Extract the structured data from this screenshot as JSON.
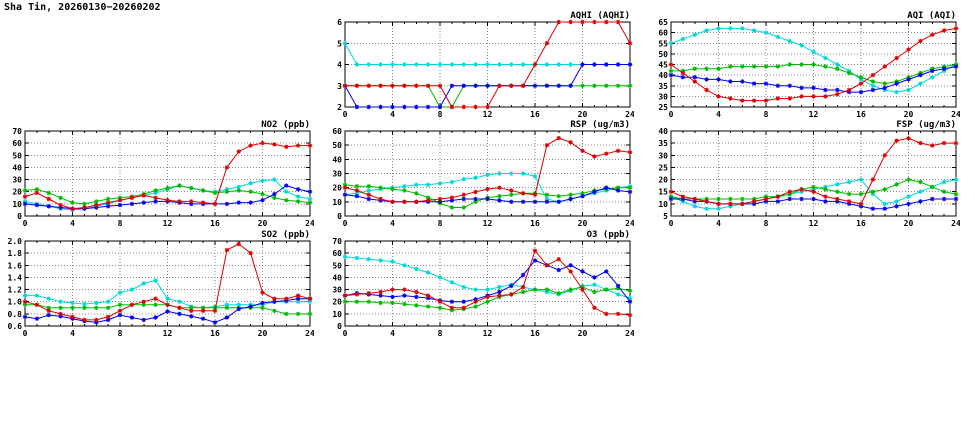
{
  "page_title": "Sha Tin, 20260130−20260202",
  "colors": {
    "red": "#dd0000",
    "green": "#00bb00",
    "blue": "#0000ee",
    "cyan": "#00d8d8",
    "grid": "#8a8a8a",
    "axis": "#000000",
    "background": "#ffffff"
  },
  "chart_data": [
    {
      "type": "line",
      "title": "AQHI (AQHI)",
      "x_range": [
        0,
        24
      ],
      "x_ticks": [
        0,
        4,
        8,
        12,
        16,
        20,
        24
      ],
      "y_range": [
        2,
        6
      ],
      "y_ticks": [
        2,
        3,
        4,
        5,
        6
      ],
      "y_decimals": 0,
      "grid": true,
      "legend": "none",
      "marker": "asterisk",
      "series": [
        {
          "name": "cyan",
          "color": "#00d8d8",
          "values": [
            5,
            4,
            4,
            4,
            4,
            4,
            4,
            4,
            4,
            4,
            4,
            4,
            4,
            4,
            4,
            4,
            4,
            4,
            4,
            4,
            4,
            4,
            4,
            4,
            4
          ]
        },
        {
          "name": "green",
          "color": "#00bb00",
          "values": [
            3,
            3,
            3,
            3,
            3,
            3,
            3,
            3,
            2,
            2,
            3,
            3,
            3,
            3,
            3,
            3,
            3,
            3,
            3,
            3,
            3,
            3,
            3,
            3,
            3
          ]
        },
        {
          "name": "blue",
          "color": "#0000ee",
          "values": [
            3,
            2,
            2,
            2,
            2,
            2,
            2,
            2,
            2,
            3,
            3,
            3,
            3,
            3,
            3,
            3,
            3,
            3,
            3,
            3,
            4,
            4,
            4,
            4,
            4
          ]
        },
        {
          "name": "red",
          "color": "#dd0000",
          "values": [
            3,
            3,
            3,
            3,
            3,
            3,
            3,
            3,
            3,
            2,
            2,
            2,
            2,
            3,
            3,
            3,
            4,
            5,
            6,
            6,
            6,
            6,
            6,
            6,
            5
          ]
        }
      ]
    },
    {
      "type": "line",
      "title": "AQI (AQI)",
      "x_range": [
        0,
        24
      ],
      "x_ticks": [
        0,
        4,
        8,
        12,
        16,
        20,
        24
      ],
      "y_range": [
        25,
        65
      ],
      "y_ticks": [
        25,
        30,
        35,
        40,
        45,
        50,
        55,
        60,
        65
      ],
      "y_decimals": 0,
      "grid": true,
      "legend": "none",
      "marker": "asterisk",
      "series": [
        {
          "name": "cyan",
          "color": "#00d8d8",
          "values": [
            55,
            57,
            59,
            61,
            62,
            62,
            62,
            61,
            60,
            58,
            56,
            54,
            51,
            48,
            45,
            42,
            38,
            35,
            33,
            32,
            33,
            36,
            39,
            42,
            45
          ]
        },
        {
          "name": "green",
          "color": "#00bb00",
          "values": [
            42,
            42,
            43,
            43,
            43,
            44,
            44,
            44,
            44,
            44,
            45,
            45,
            45,
            44,
            43,
            41,
            39,
            37,
            36,
            37,
            39,
            41,
            43,
            44,
            45
          ]
        },
        {
          "name": "blue",
          "color": "#0000ee",
          "values": [
            40,
            39,
            39,
            38,
            38,
            37,
            37,
            36,
            36,
            35,
            35,
            34,
            34,
            33,
            33,
            32,
            32,
            33,
            34,
            36,
            38,
            40,
            42,
            43,
            44
          ]
        },
        {
          "name": "red",
          "color": "#dd0000",
          "values": [
            45,
            41,
            37,
            33,
            30,
            29,
            28,
            28,
            28,
            29,
            29,
            30,
            30,
            30,
            31,
            33,
            36,
            40,
            44,
            48,
            52,
            56,
            59,
            61,
            62
          ]
        }
      ]
    },
    {
      "type": "line",
      "title": "NO2 (ppb)",
      "x_range": [
        0,
        24
      ],
      "x_ticks": [
        0,
        4,
        8,
        12,
        16,
        20,
        24
      ],
      "y_range": [
        0,
        70
      ],
      "y_ticks": [
        0,
        10,
        20,
        30,
        40,
        50,
        60,
        70
      ],
      "y_decimals": 0,
      "grid": true,
      "legend": "none",
      "marker": "asterisk",
      "series": [
        {
          "name": "cyan",
          "color": "#00d8d8",
          "values": [
            12,
            10,
            8,
            6,
            5,
            6,
            8,
            10,
            13,
            15,
            17,
            19,
            22,
            25,
            23,
            21,
            20,
            22,
            24,
            27,
            29,
            30,
            20,
            16,
            14
          ]
        },
        {
          "name": "green",
          "color": "#00bb00",
          "values": [
            21,
            22,
            19,
            15,
            11,
            10,
            12,
            14,
            15,
            16,
            18,
            21,
            23,
            25,
            23,
            21,
            19,
            20,
            21,
            20,
            18,
            15,
            13,
            12,
            11
          ]
        },
        {
          "name": "blue",
          "color": "#0000ee",
          "values": [
            10,
            9,
            8,
            7,
            6,
            6,
            7,
            8,
            9,
            10,
            11,
            12,
            12,
            11,
            10,
            10,
            10,
            10,
            11,
            11,
            13,
            18,
            25,
            22,
            20
          ]
        },
        {
          "name": "red",
          "color": "#dd0000",
          "values": [
            16,
            19,
            14,
            9,
            6,
            7,
            9,
            11,
            13,
            15,
            17,
            15,
            13,
            12,
            12,
            11,
            10,
            40,
            53,
            58,
            60,
            59,
            57,
            58,
            58
          ]
        }
      ]
    },
    {
      "type": "line",
      "title": "RSP (ug/m3)",
      "x_range": [
        0,
        24
      ],
      "x_ticks": [
        0,
        4,
        8,
        12,
        16,
        20,
        24
      ],
      "y_range": [
        0,
        60
      ],
      "y_ticks": [
        0,
        10,
        20,
        30,
        40,
        50,
        60
      ],
      "y_decimals": 0,
      "grid": true,
      "legend": "none",
      "marker": "asterisk",
      "series": [
        {
          "name": "cyan",
          "color": "#00d8d8",
          "values": [
            15,
            16,
            18,
            19,
            20,
            21,
            22,
            22,
            23,
            24,
            26,
            27,
            29,
            30,
            30,
            30,
            28,
            12,
            10,
            12,
            14,
            16,
            18,
            20,
            21
          ]
        },
        {
          "name": "green",
          "color": "#00bb00",
          "values": [
            22,
            21,
            21,
            20,
            19,
            18,
            16,
            13,
            9,
            6,
            6,
            10,
            13,
            14,
            15,
            16,
            16,
            15,
            14,
            15,
            16,
            18,
            19,
            20,
            20
          ]
        },
        {
          "name": "blue",
          "color": "#0000ee",
          "values": [
            15,
            14,
            12,
            11,
            10,
            10,
            10,
            10,
            10,
            11,
            12,
            12,
            12,
            11,
            10,
            10,
            10,
            10,
            10,
            12,
            14,
            17,
            20,
            18,
            17
          ]
        },
        {
          "name": "red",
          "color": "#dd0000",
          "values": [
            20,
            18,
            15,
            12,
            10,
            10,
            10,
            11,
            12,
            13,
            15,
            17,
            19,
            20,
            18,
            16,
            15,
            50,
            55,
            52,
            46,
            42,
            44,
            46,
            45
          ]
        }
      ]
    },
    {
      "type": "line",
      "title": "FSP (ug/m3)",
      "x_range": [
        0,
        24
      ],
      "x_ticks": [
        0,
        4,
        8,
        12,
        16,
        20,
        24
      ],
      "y_range": [
        5,
        40
      ],
      "y_ticks": [
        5,
        10,
        15,
        20,
        25,
        30,
        35,
        40
      ],
      "y_decimals": 0,
      "grid": true,
      "legend": "none",
      "marker": "asterisk",
      "series": [
        {
          "name": "cyan",
          "color": "#00d8d8",
          "values": [
            13,
            11,
            9,
            8,
            8,
            9,
            10,
            11,
            12,
            13,
            14,
            15,
            16,
            17,
            18,
            19,
            20,
            14,
            10,
            11,
            13,
            15,
            17,
            19,
            20
          ]
        },
        {
          "name": "green",
          "color": "#00bb00",
          "values": [
            13,
            12,
            12,
            12,
            12,
            12,
            12,
            12,
            13,
            13,
            14,
            16,
            17,
            16,
            15,
            14,
            14,
            15,
            16,
            18,
            20,
            19,
            17,
            15,
            14
          ]
        },
        {
          "name": "blue",
          "color": "#0000ee",
          "values": [
            12,
            12,
            11,
            11,
            10,
            10,
            10,
            10,
            11,
            11,
            12,
            12,
            12,
            11,
            11,
            10,
            9,
            8,
            8,
            9,
            10,
            11,
            12,
            12,
            12
          ]
        },
        {
          "name": "red",
          "color": "#dd0000",
          "values": [
            15,
            13,
            12,
            11,
            10,
            10,
            10,
            11,
            12,
            13,
            15,
            16,
            15,
            13,
            12,
            11,
            10,
            20,
            30,
            36,
            37,
            35,
            34,
            35,
            35
          ]
        }
      ]
    },
    {
      "type": "line",
      "title": "SO2 (ppb)",
      "x_range": [
        0,
        24
      ],
      "x_ticks": [
        0,
        4,
        8,
        12,
        16,
        20,
        24
      ],
      "y_range": [
        0.6,
        2.0
      ],
      "y_ticks": [
        0.6,
        0.8,
        1.0,
        1.2,
        1.4,
        1.6,
        1.8,
        2.0
      ],
      "y_decimals": 1,
      "grid": true,
      "legend": "none",
      "marker": "asterisk",
      "series": [
        {
          "name": "cyan",
          "color": "#00d8d8",
          "values": [
            1.1,
            1.1,
            1.05,
            1.0,
            0.98,
            0.96,
            0.98,
            1.0,
            1.15,
            1.2,
            1.3,
            1.35,
            1.05,
            1.0,
            0.92,
            0.9,
            0.92,
            0.95,
            0.95,
            0.95,
            0.95,
            1.0,
            1.0,
            1.0,
            1.0
          ]
        },
        {
          "name": "green",
          "color": "#00bb00",
          "values": [
            0.95,
            0.95,
            0.9,
            0.9,
            0.9,
            0.9,
            0.9,
            0.9,
            0.95,
            0.95,
            0.95,
            0.95,
            0.95,
            0.9,
            0.9,
            0.9,
            0.9,
            0.9,
            0.9,
            0.9,
            0.9,
            0.85,
            0.8,
            0.8,
            0.8
          ]
        },
        {
          "name": "blue",
          "color": "#0000ee",
          "values": [
            0.75,
            0.72,
            0.78,
            0.76,
            0.72,
            0.68,
            0.66,
            0.7,
            0.78,
            0.74,
            0.7,
            0.74,
            0.84,
            0.8,
            0.76,
            0.72,
            0.66,
            0.74,
            0.88,
            0.92,
            0.98,
            1.0,
            1.02,
            1.05,
            1.05
          ]
        },
        {
          "name": "red",
          "color": "#dd0000",
          "values": [
            1.0,
            0.95,
            0.85,
            0.8,
            0.75,
            0.7,
            0.7,
            0.75,
            0.85,
            0.95,
            1.0,
            1.05,
            0.95,
            0.9,
            0.85,
            0.85,
            0.85,
            1.85,
            1.95,
            1.8,
            1.15,
            1.05,
            1.05,
            1.1,
            1.05
          ]
        }
      ]
    },
    {
      "type": "line",
      "title": "O3 (ppb)",
      "x_range": [
        0,
        24
      ],
      "x_ticks": [
        0,
        4,
        8,
        12,
        16,
        20,
        24
      ],
      "y_range": [
        0,
        70
      ],
      "y_ticks": [
        0,
        10,
        20,
        30,
        40,
        50,
        60,
        70
      ],
      "y_decimals": 0,
      "grid": true,
      "legend": "none",
      "marker": "asterisk",
      "series": [
        {
          "name": "cyan",
          "color": "#00d8d8",
          "values": [
            57,
            56,
            55,
            54,
            53,
            50,
            47,
            44,
            40,
            36,
            32,
            30,
            30,
            32,
            34,
            32,
            30,
            28,
            26,
            29,
            33,
            34,
            30,
            26,
            23
          ]
        },
        {
          "name": "green",
          "color": "#00bb00",
          "values": [
            20,
            20,
            20,
            19,
            19,
            18,
            17,
            16,
            15,
            13,
            14,
            16,
            20,
            24,
            26,
            28,
            30,
            30,
            27,
            30,
            32,
            28,
            30,
            31,
            29
          ]
        },
        {
          "name": "blue",
          "color": "#0000ee",
          "values": [
            25,
            27,
            26,
            25,
            24,
            25,
            24,
            23,
            21,
            20,
            20,
            22,
            25,
            28,
            33,
            42,
            54,
            50,
            46,
            50,
            45,
            40,
            45,
            33,
            20
          ]
        },
        {
          "name": "red",
          "color": "#dd0000",
          "values": [
            25,
            26,
            27,
            28,
            30,
            30,
            28,
            25,
            20,
            15,
            15,
            20,
            24,
            25,
            26,
            32,
            62,
            50,
            55,
            45,
            30,
            15,
            10,
            10,
            9
          ]
        }
      ]
    }
  ]
}
